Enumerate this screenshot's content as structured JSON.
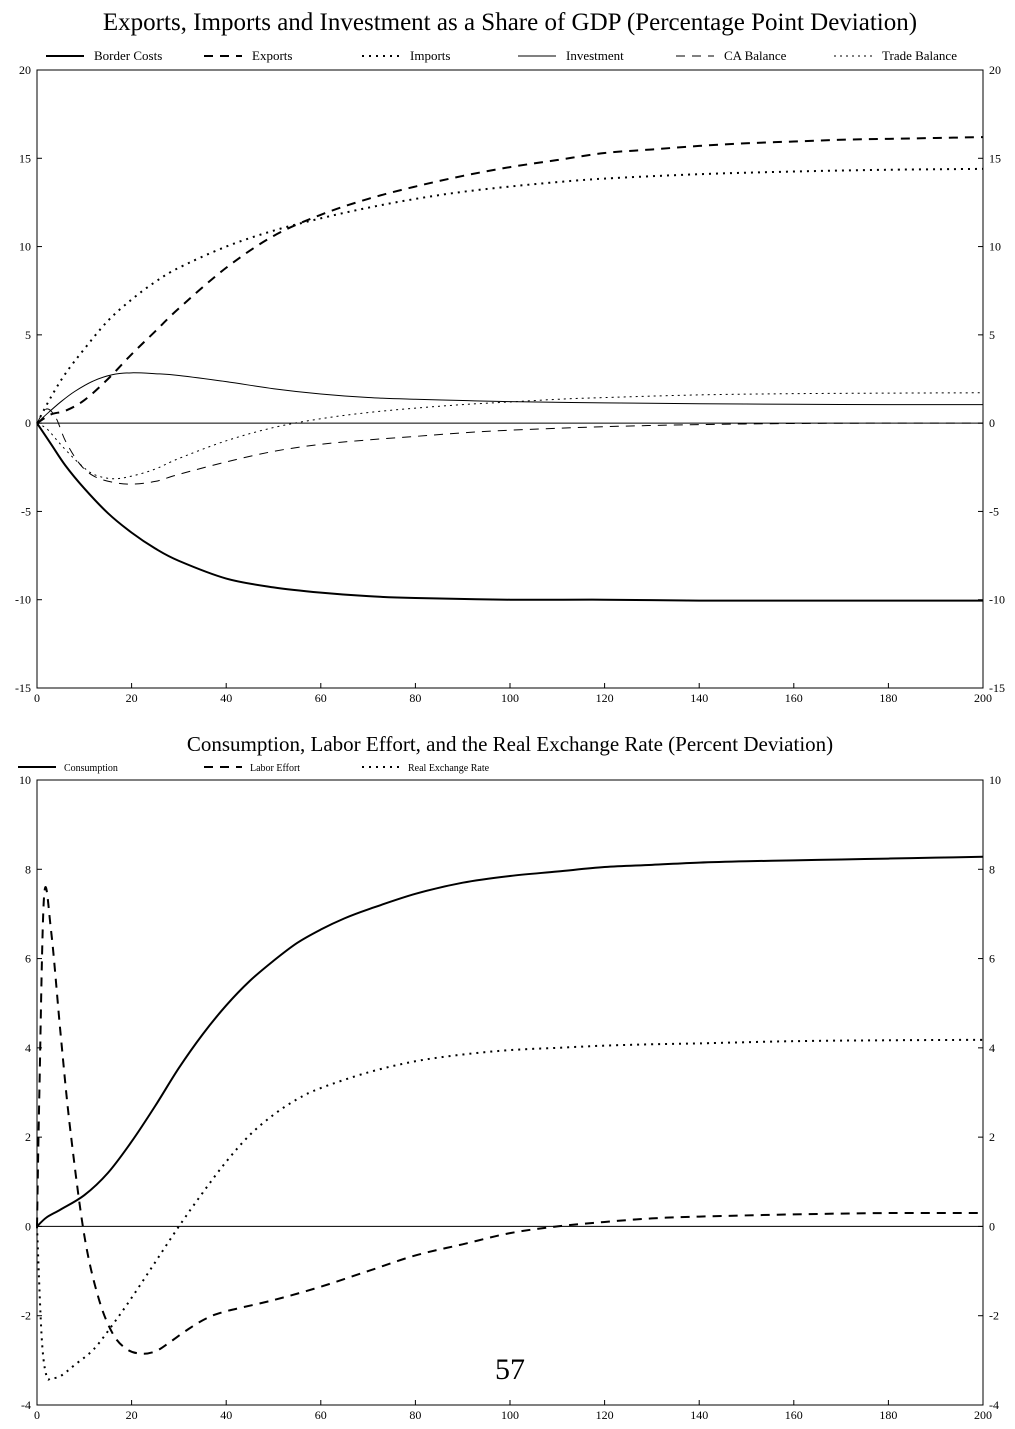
{
  "page_number": "57",
  "chart_data": [
    {
      "type": "line",
      "title": "Exports, Imports and Investment as a Share of GDP (Percentage Point Deviation)",
      "xlabel": "",
      "ylabel": "",
      "xlim": [
        0,
        200
      ],
      "ylim": [
        -15,
        20
      ],
      "x_ticks": [
        0,
        20,
        40,
        60,
        80,
        100,
        120,
        140,
        160,
        180,
        200
      ],
      "y_ticks": [
        -15,
        -10,
        -5,
        0,
        5,
        10,
        15,
        20
      ],
      "x_tick_labels": [
        "0",
        "20",
        "40",
        "60",
        "80",
        "100",
        "120",
        "140",
        "160",
        "180",
        "200"
      ],
      "y_tick_labels": [
        "-15",
        "-10",
        "-5",
        "0",
        "5",
        "10",
        "15",
        "20"
      ],
      "zero_line": true,
      "grid": false,
      "legend_position": "top",
      "series": [
        {
          "name": "Border Costs",
          "style": "solid-thick",
          "x": [
            0,
            3,
            6,
            10,
            15,
            20,
            25,
            30,
            40,
            50,
            60,
            70,
            80,
            100,
            120,
            140,
            160,
            180,
            200
          ],
          "y": [
            0,
            -1.2,
            -2.4,
            -3.7,
            -5.1,
            -6.2,
            -7.1,
            -7.8,
            -8.8,
            -9.3,
            -9.6,
            -9.8,
            -9.9,
            -10,
            -10,
            -10.05,
            -10.05,
            -10.05,
            -10.05
          ]
        },
        {
          "name": "Exports",
          "style": "dash-thick",
          "x": [
            0,
            3,
            6,
            10,
            15,
            20,
            25,
            30,
            40,
            50,
            60,
            70,
            80,
            90,
            100,
            110,
            120,
            130,
            140,
            150,
            160,
            170,
            180,
            190,
            200
          ],
          "y": [
            0,
            0.5,
            0.7,
            1.3,
            2.5,
            3.9,
            5.2,
            6.5,
            8.8,
            10.6,
            11.8,
            12.7,
            13.4,
            14.0,
            14.5,
            14.9,
            15.3,
            15.5,
            15.7,
            15.85,
            15.95,
            16.05,
            16.1,
            16.15,
            16.2
          ]
        },
        {
          "name": "Imports",
          "style": "dot-thick",
          "x": [
            0,
            3,
            6,
            10,
            15,
            20,
            25,
            30,
            40,
            50,
            60,
            70,
            80,
            90,
            100,
            110,
            120,
            140,
            160,
            180,
            200
          ],
          "y": [
            0,
            1.5,
            2.8,
            4.2,
            5.8,
            7.0,
            8.0,
            8.8,
            10.0,
            10.9,
            11.6,
            12.2,
            12.7,
            13.1,
            13.4,
            13.65,
            13.85,
            14.1,
            14.25,
            14.35,
            14.4
          ]
        },
        {
          "name": "Investment",
          "style": "solid-thin",
          "x": [
            0,
            2,
            5,
            8,
            12,
            16,
            20,
            25,
            30,
            40,
            50,
            60,
            70,
            80,
            90,
            100,
            120,
            140,
            160,
            180,
            200
          ],
          "y": [
            0,
            0.5,
            1.2,
            1.8,
            2.4,
            2.75,
            2.85,
            2.8,
            2.7,
            2.35,
            1.95,
            1.65,
            1.45,
            1.35,
            1.28,
            1.22,
            1.15,
            1.1,
            1.07,
            1.05,
            1.05
          ]
        },
        {
          "name": "CA Balance",
          "style": "dash-thin",
          "x": [
            0,
            2,
            4,
            6,
            9,
            12,
            16,
            20,
            25,
            30,
            40,
            50,
            60,
            70,
            80,
            90,
            100,
            120,
            140,
            160,
            180,
            200
          ],
          "y": [
            0,
            0.8,
            0.3,
            -1.0,
            -2.3,
            -3.0,
            -3.35,
            -3.45,
            -3.3,
            -2.9,
            -2.2,
            -1.6,
            -1.2,
            -0.95,
            -0.75,
            -0.55,
            -0.4,
            -0.2,
            -0.08,
            -0.02,
            0,
            0
          ]
        },
        {
          "name": "Trade Balance",
          "style": "dot-thin",
          "x": [
            0,
            2,
            4,
            6,
            9,
            12,
            16,
            20,
            25,
            30,
            40,
            50,
            60,
            70,
            80,
            90,
            100,
            110,
            120,
            140,
            160,
            180,
            200
          ],
          "y": [
            0,
            -0.3,
            -0.9,
            -1.5,
            -2.3,
            -2.9,
            -3.15,
            -3.0,
            -2.6,
            -2.0,
            -1.0,
            -0.25,
            0.25,
            0.6,
            0.85,
            1.05,
            1.2,
            1.35,
            1.45,
            1.6,
            1.67,
            1.7,
            1.72
          ]
        }
      ]
    },
    {
      "type": "line",
      "title": "Consumption, Labor Effort, and the Real Exchange Rate   (Percent Deviation)",
      "xlabel": "",
      "ylabel": "",
      "xlim": [
        0,
        200
      ],
      "ylim": [
        -4,
        10
      ],
      "x_ticks": [
        0,
        20,
        40,
        60,
        80,
        100,
        120,
        140,
        160,
        180,
        200
      ],
      "y_ticks": [
        -4,
        -2,
        0,
        2,
        4,
        6,
        8,
        10
      ],
      "x_tick_labels": [
        "0",
        "20",
        "40",
        "60",
        "80",
        "100",
        "120",
        "140",
        "160",
        "180",
        "200"
      ],
      "y_tick_labels": [
        "-4",
        "-2",
        "0",
        "2",
        "4",
        "6",
        "8",
        "10"
      ],
      "zero_line": true,
      "grid": false,
      "legend_position": "top-left",
      "series": [
        {
          "name": "Consumption",
          "style": "solid-thick",
          "x": [
            0,
            2,
            5,
            10,
            15,
            20,
            25,
            30,
            35,
            40,
            45,
            50,
            55,
            60,
            65,
            70,
            80,
            90,
            100,
            110,
            120,
            130,
            140,
            150,
            160,
            170,
            180,
            190,
            200
          ],
          "y": [
            0,
            0.2,
            0.38,
            0.7,
            1.2,
            1.9,
            2.7,
            3.55,
            4.3,
            4.95,
            5.5,
            5.95,
            6.35,
            6.65,
            6.9,
            7.1,
            7.45,
            7.7,
            7.85,
            7.95,
            8.05,
            8.1,
            8.15,
            8.18,
            8.2,
            8.22,
            8.24,
            8.26,
            8.28
          ]
        },
        {
          "name": "Labor Effort",
          "style": "dash-thick",
          "x": [
            0,
            0.5,
            1.5,
            3,
            5,
            7,
            10,
            13,
            16,
            19,
            22,
            25,
            28,
            32,
            36,
            40,
            50,
            60,
            70,
            80,
            90,
            100,
            110,
            120,
            130,
            140,
            160,
            180,
            200
          ],
          "y": [
            0,
            3,
            7.4,
            6.6,
            4.3,
            2.2,
            -0.2,
            -1.6,
            -2.4,
            -2.75,
            -2.85,
            -2.8,
            -2.6,
            -2.3,
            -2.05,
            -1.9,
            -1.65,
            -1.35,
            -1.0,
            -0.65,
            -0.4,
            -0.15,
            0,
            0.1,
            0.18,
            0.22,
            0.27,
            0.3,
            0.3
          ]
        },
        {
          "name": "Real Exchange Rate",
          "style": "dot-thick",
          "x": [
            0,
            1,
            2,
            3,
            5,
            8,
            12,
            16,
            20,
            25,
            30,
            35,
            40,
            45,
            50,
            55,
            60,
            70,
            80,
            90,
            100,
            110,
            120,
            130,
            140,
            160,
            180,
            200
          ],
          "y": [
            0,
            -2.5,
            -3.35,
            -3.4,
            -3.35,
            -3.1,
            -2.75,
            -2.2,
            -1.6,
            -0.8,
            0,
            0.75,
            1.45,
            2.05,
            2.5,
            2.85,
            3.1,
            3.45,
            3.7,
            3.85,
            3.95,
            4.0,
            4.05,
            4.08,
            4.1,
            4.15,
            4.17,
            4.18
          ]
        }
      ]
    }
  ]
}
